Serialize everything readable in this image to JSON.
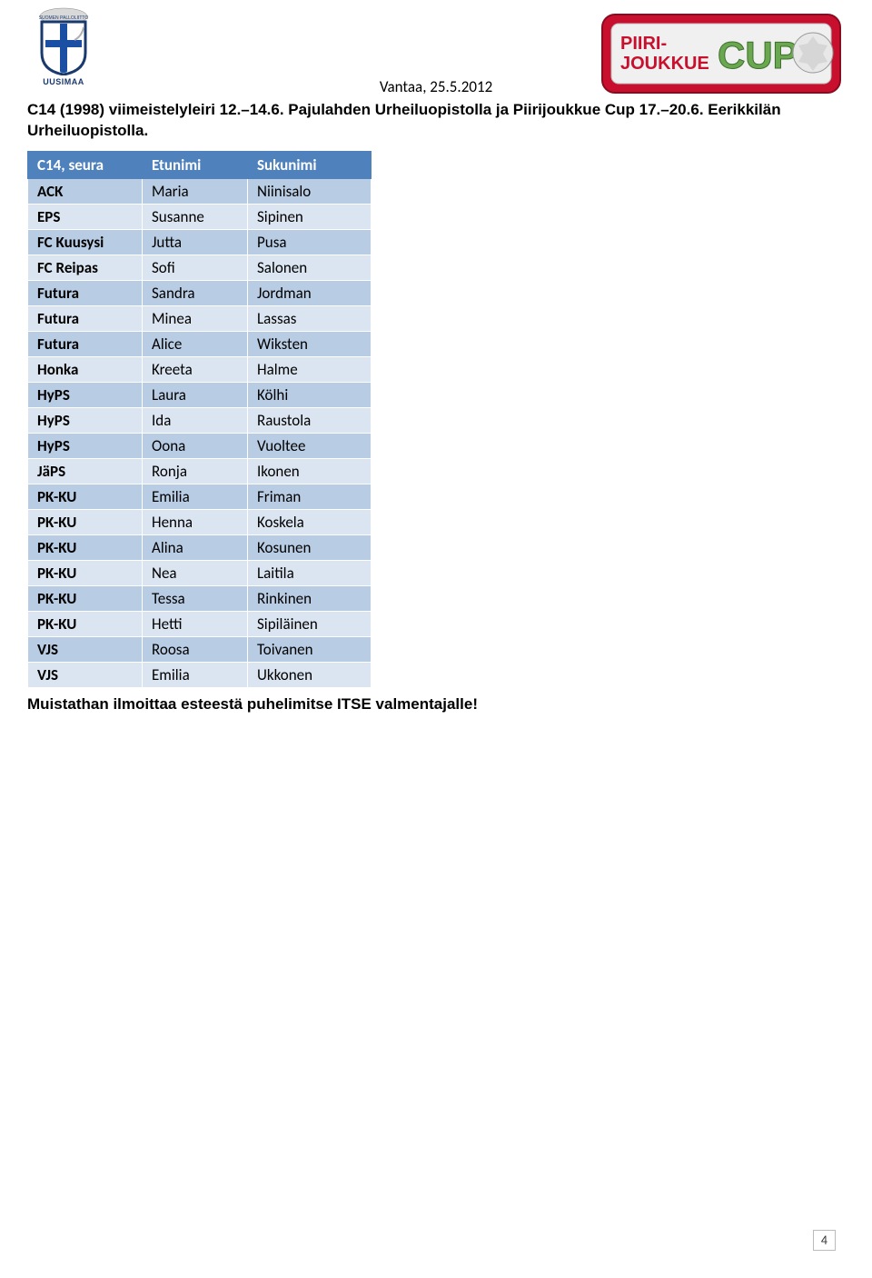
{
  "header": {
    "date_location": "Vantaa, 25.5.2012",
    "logo_region_text": "UUSIMAA",
    "cup_logo": {
      "line1": "PIIRI-",
      "line2": "JOUKKUE",
      "word": "CUP",
      "frame_color": "#c8102e",
      "inner_bg": "#f0f0f0",
      "text_color": "#c8102e",
      "accent_green": "#6aa84f"
    }
  },
  "title": "C14 (1998) viimeistelyleiri 12.–14.6. Pajulahden Urheiluopistolla ja Piirijoukkue Cup 17.–20.6. Eerikkilän Urheiluopistolla.",
  "table": {
    "header_bg": "#4f81bd",
    "header_fg": "#ffffff",
    "row_alt1": "#b8cce4",
    "row_alt2": "#dbe5f1",
    "columns": [
      "C14, seura",
      "Etunimi",
      "Sukunimi"
    ],
    "rows": [
      [
        "ACK",
        "Maria",
        "Niinisalo"
      ],
      [
        "EPS",
        "Susanne",
        "Sipinen"
      ],
      [
        "FC Kuusysi",
        "Jutta",
        "Pusa"
      ],
      [
        "FC Reipas",
        "Sofi",
        "Salonen"
      ],
      [
        "Futura",
        "Sandra",
        "Jordman"
      ],
      [
        "Futura",
        "Minea",
        "Lassas"
      ],
      [
        "Futura",
        "Alice",
        "Wiksten"
      ],
      [
        "Honka",
        "Kreeta",
        "Halme"
      ],
      [
        "HyPS",
        "Laura",
        "Kölhi"
      ],
      [
        "HyPS",
        "Ida",
        "Raustola"
      ],
      [
        "HyPS",
        "Oona",
        "Vuoltee"
      ],
      [
        "JäPS",
        "Ronja",
        "Ikonen"
      ],
      [
        "PK-KU",
        "Emilia",
        "Friman"
      ],
      [
        "PK-KU",
        "Henna",
        "Koskela"
      ],
      [
        "PK-KU",
        "Alina",
        "Kosunen"
      ],
      [
        "PK-KU",
        "Nea",
        "Laitila"
      ],
      [
        "PK-KU",
        "Tessa",
        "Rinkinen"
      ],
      [
        "PK-KU",
        "Hetti",
        "Sipiläinen"
      ],
      [
        "VJS",
        "Roosa",
        "Toivanen"
      ],
      [
        "VJS",
        "Emilia",
        "Ukkonen"
      ]
    ]
  },
  "footer_text": "Muistathan ilmoittaa esteestä puhelimitse ITSE valmentajalle!",
  "page_number": "4"
}
